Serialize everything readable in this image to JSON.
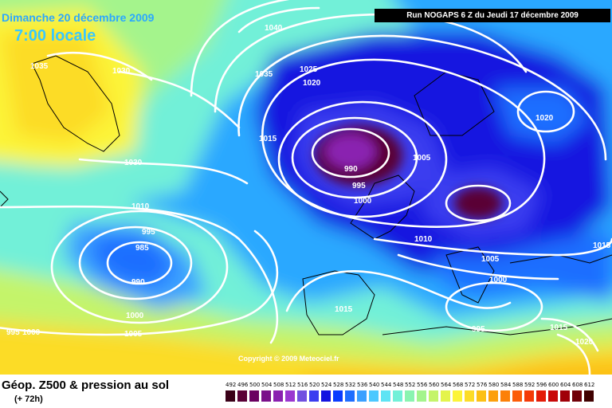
{
  "header": {
    "date": "Dimanche 20 décembre 2009",
    "time": "7:00 locale",
    "run": "Run NOGAPS 6 Z du Jeudi 17 décembre 2009"
  },
  "copyright": "Copyright © 2009 Meteociel.fr",
  "footer": {
    "title": "Géop. Z500 & pression au sol",
    "subtitle": "(+ 72h)"
  },
  "scale": {
    "values": [
      "492",
      "496",
      "500",
      "504",
      "508",
      "512",
      "516",
      "520",
      "524",
      "528",
      "532",
      "536",
      "540",
      "544",
      "548",
      "552",
      "556",
      "560",
      "564",
      "568",
      "572",
      "576",
      "580",
      "584",
      "588",
      "592",
      "596",
      "600",
      "604",
      "608",
      "612"
    ],
    "colors": [
      "#3a0018",
      "#5a0036",
      "#6a0060",
      "#7a108a",
      "#8a20b0",
      "#9a36d0",
      "#7050e0",
      "#3a3cf0",
      "#1414e0",
      "#0a3cff",
      "#1e6eff",
      "#3aa0ff",
      "#4cc8ff",
      "#5ee4f4",
      "#72f0d8",
      "#8af4b0",
      "#a4f48c",
      "#c4f46a",
      "#e4f44c",
      "#fcf438",
      "#fcdc28",
      "#fcc014",
      "#fca00c",
      "#fc8008",
      "#fc5c08",
      "#f43a08",
      "#e41c08",
      "#c80808",
      "#a00008",
      "#700008",
      "#400000"
    ]
  },
  "isobars": [
    {
      "label": "1035",
      "near": "Greenland"
    },
    {
      "label": "1030",
      "near": "Greenland"
    },
    {
      "label": "1030",
      "near": "Greenland sud"
    },
    {
      "label": "1040",
      "near": "Atlantique nord"
    },
    {
      "label": "1035",
      "near": "Islande"
    },
    {
      "label": "1025",
      "near": "Mer de Norvège"
    },
    {
      "label": "1020",
      "near": "Mer de Norvège"
    },
    {
      "label": "1015",
      "near": "Atlantique"
    },
    {
      "label": "1010",
      "near": "Atlantique centre"
    },
    {
      "label": "995",
      "near": "Dépression Atlantique"
    },
    {
      "label": "985",
      "near": "Dépression Atlantique"
    },
    {
      "label": "990",
      "near": "Dépression Atlantique"
    },
    {
      "label": "1000",
      "near": "Atlantique sud"
    },
    {
      "label": "1005",
      "near": "Atlantique sud"
    },
    {
      "label": "995",
      "near": "bord gauche"
    },
    {
      "label": "1000",
      "near": "bord gauche"
    },
    {
      "label": "990",
      "near": "Mer du Nord"
    },
    {
      "label": "995",
      "near": "Mer du Nord"
    },
    {
      "label": "1000",
      "near": "Mer du Nord"
    },
    {
      "label": "1005",
      "near": "Scandinavie"
    },
    {
      "label": "1010",
      "near": "Europe"
    },
    {
      "label": "1005",
      "near": "Europe centrale"
    },
    {
      "label": "1000",
      "near": "Italie"
    },
    {
      "label": "1015",
      "near": "Ibérie"
    },
    {
      "label": "995",
      "near": "Méditerranée"
    },
    {
      "label": "1020",
      "near": "Russie"
    },
    {
      "label": "1015",
      "near": "bord droit"
    },
    {
      "label": "1015",
      "near": "Moyen-Orient"
    },
    {
      "label": "1020",
      "near": "Moyen-Orient"
    }
  ]
}
